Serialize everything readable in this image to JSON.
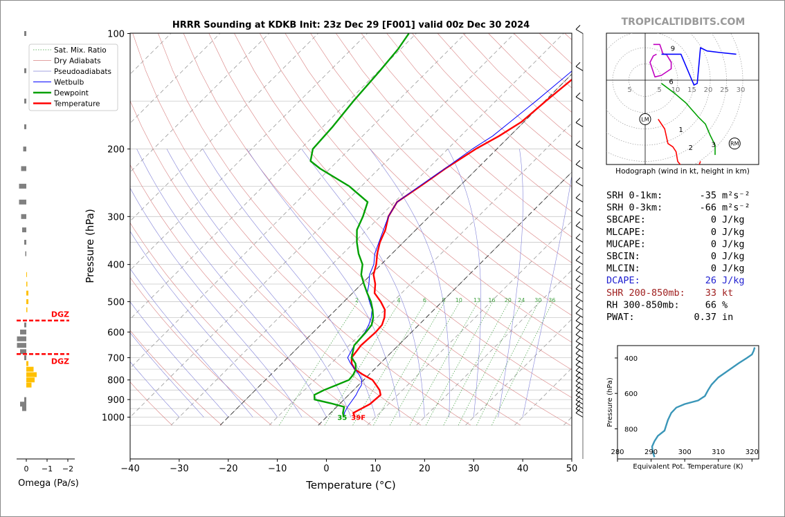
{
  "title": "HRRR Sounding at KDKB Init: 23z Dec 29 [F001] valid 00z Dec 30 2024",
  "watermark": "TROPICALTIDBITS.COM",
  "colors": {
    "temperature": "#ff0000",
    "dewpoint": "#00a000",
    "wetbulb": "#0000ff",
    "omega_up": "#808080",
    "omega_down": "#ffc000",
    "dgz": "#ff0000",
    "theta_e": "#3a96b8"
  },
  "chart_data": [
    {
      "type": "line",
      "title": "HRRR Sounding at KDKB Init: 23z Dec 29 [F001] valid 00z Dec 30 2024",
      "xlabel": "Temperature (°C)",
      "ylabel": "Pressure (hPa)",
      "xlim": [
        -40,
        50
      ],
      "ylim": [
        1050,
        100
      ],
      "y_scale": "log",
      "x_ticks": [
        -40,
        -30,
        -20,
        -10,
        0,
        10,
        20,
        30,
        40,
        50
      ],
      "y_ticks": [
        100,
        200,
        300,
        400,
        500,
        600,
        700,
        800,
        900,
        1000
      ],
      "legend": [
        "Sat. Mix. Ratio",
        "Dry Adiabats",
        "Pseudoadiabats",
        "Wetbulb",
        "Dewpoint",
        "Temperature"
      ],
      "legend_position": "top-left",
      "mixing_ratio_labels": [
        "2",
        "4",
        "6",
        "8",
        "10",
        "13",
        "16",
        "20",
        "24",
        "30",
        "36"
      ],
      "surface_labels": {
        "dewpoint": "35",
        "temperature": "39F"
      },
      "series": [
        {
          "name": "Temperature",
          "points": [
            [
              5.8,
              1000
            ],
            [
              4.6,
              975
            ],
            [
              6.2,
              925
            ],
            [
              6.5,
              875
            ],
            [
              5.3,
              850
            ],
            [
              3.6,
              825
            ],
            [
              1.8,
              800
            ],
            [
              -1.2,
              775
            ],
            [
              -4.0,
              750
            ],
            [
              -5.8,
              725
            ],
            [
              -7.0,
              700
            ],
            [
              -7.6,
              650
            ],
            [
              -7.3,
              600
            ],
            [
              -7.5,
              575
            ],
            [
              -8.5,
              550
            ],
            [
              -10.0,
              525
            ],
            [
              -12.5,
              500
            ],
            [
              -15.5,
              475
            ],
            [
              -17.2,
              450
            ],
            [
              -19.5,
              425
            ],
            [
              -21.0,
              400
            ],
            [
              -23.0,
              375
            ],
            [
              -24.8,
              350
            ],
            [
              -26.2,
              325
            ],
            [
              -28.3,
              300
            ],
            [
              -29.5,
              275
            ],
            [
              -28.0,
              250
            ],
            [
              -26.5,
              225
            ],
            [
              -24.3,
              200
            ],
            [
              -22.2,
              185
            ],
            [
              -20.5,
              170
            ],
            [
              -19.8,
              150
            ],
            [
              -18.5,
              125
            ],
            [
              -17.0,
              100
            ]
          ]
        },
        {
          "name": "Wetbulb",
          "points": [
            [
              3.5,
              1000
            ],
            [
              2.8,
              975
            ],
            [
              2.2,
              940
            ],
            [
              1.8,
              900
            ],
            [
              1.5,
              875
            ],
            [
              1.0,
              850
            ],
            [
              0.6,
              825
            ],
            [
              -0.4,
              800
            ],
            [
              -2.0,
              775
            ],
            [
              -4.0,
              750
            ],
            [
              -6.0,
              725
            ],
            [
              -7.8,
              700
            ],
            [
              -9.0,
              650
            ],
            [
              -9.5,
              600
            ],
            [
              -10.2,
              575
            ],
            [
              -11.2,
              550
            ],
            [
              -12.6,
              525
            ],
            [
              -14.8,
              500
            ],
            [
              -17.0,
              475
            ],
            [
              -18.5,
              450
            ],
            [
              -20.3,
              425
            ],
            [
              -21.5,
              400
            ],
            [
              -23.5,
              375
            ],
            [
              -25.0,
              350
            ],
            [
              -26.6,
              325
            ],
            [
              -28.3,
              300
            ],
            [
              -29.5,
              275
            ],
            [
              -28.2,
              250
            ],
            [
              -26.6,
              225
            ],
            [
              -25.0,
              200
            ],
            [
              -23.5,
              185
            ],
            [
              -22.8,
              170
            ],
            [
              -21.8,
              150
            ],
            [
              -20.6,
              125
            ],
            [
              -19.5,
              100
            ]
          ]
        },
        {
          "name": "Dewpoint",
          "points": [
            [
              3.5,
              1000
            ],
            [
              2.5,
              975
            ],
            [
              1.5,
              940
            ],
            [
              -2.0,
              920
            ],
            [
              -6.0,
              900
            ],
            [
              -7.0,
              875
            ],
            [
              -6.0,
              850
            ],
            [
              -4.5,
              825
            ],
            [
              -3.0,
              800
            ],
            [
              -3.2,
              775
            ],
            [
              -3.8,
              750
            ],
            [
              -5.0,
              725
            ],
            [
              -7.0,
              700
            ],
            [
              -9.0,
              650
            ],
            [
              -9.3,
              600
            ],
            [
              -9.6,
              575
            ],
            [
              -10.8,
              550
            ],
            [
              -12.5,
              525
            ],
            [
              -14.5,
              500
            ],
            [
              -17.0,
              475
            ],
            [
              -19.5,
              450
            ],
            [
              -22.0,
              425
            ],
            [
              -23.8,
              400
            ],
            [
              -26.8,
              375
            ],
            [
              -29.5,
              350
            ],
            [
              -32.0,
              325
            ],
            [
              -33.5,
              300
            ],
            [
              -35.5,
              275
            ],
            [
              -42.5,
              250
            ],
            [
              -52.0,
              225
            ],
            [
              -55.5,
              215
            ],
            [
              -57.5,
              200
            ],
            [
              -58.0,
              175
            ],
            [
              -59.0,
              150
            ],
            [
              -59.8,
              125
            ],
            [
              -60.5,
              110
            ],
            [
              -61.5,
              100
            ]
          ]
        }
      ]
    },
    {
      "type": "bar",
      "xlabel": "Omega (Pa/s)",
      "x_ticks": [
        "0",
        "−1",
        "−2"
      ],
      "dgz_label": "DGZ",
      "dgz_bounds_hpa": [
        560,
        685
      ],
      "omega": [
        [
          100,
          0.1
        ],
        [
          125,
          0.1
        ],
        [
          150,
          0.1
        ],
        [
          175,
          0.1
        ],
        [
          200,
          0.15
        ],
        [
          225,
          0.25
        ],
        [
          250,
          0.35
        ],
        [
          275,
          0.35
        ],
        [
          300,
          0.25
        ],
        [
          325,
          0.2
        ],
        [
          350,
          0.1
        ],
        [
          375,
          0.05
        ],
        [
          425,
          -0.02
        ],
        [
          450,
          -0.05
        ],
        [
          475,
          -0.1
        ],
        [
          500,
          -0.1
        ],
        [
          525,
          -0.05
        ],
        [
          575,
          0.1
        ],
        [
          600,
          0.3
        ],
        [
          625,
          0.45
        ],
        [
          650,
          0.45
        ],
        [
          675,
          0.3
        ],
        [
          700,
          0.1
        ],
        [
          725,
          -0.1
        ],
        [
          750,
          -0.35
        ],
        [
          775,
          -0.5
        ],
        [
          800,
          -0.4
        ],
        [
          825,
          -0.25
        ],
        [
          900,
          0.1
        ],
        [
          925,
          0.3
        ],
        [
          950,
          0.2
        ]
      ]
    },
    {
      "type": "line",
      "title": "Hodograph (wind in kt, height in km)",
      "rings": [
        5,
        10,
        15,
        20,
        25,
        30
      ],
      "labels": [
        "9",
        "6",
        "1",
        "2",
        "3"
      ],
      "markers": [
        "LM",
        "RM"
      ],
      "series": [
        {
          "color": "#ff0000",
          "points": [
            [
              4,
              -12
            ],
            [
              6,
              -15
            ],
            [
              7,
              -19.5
            ],
            [
              8.5,
              -20.5
            ],
            [
              9.5,
              -22
            ],
            [
              10,
              -25
            ],
            [
              12,
              -27.5
            ],
            [
              14,
              -28
            ],
            [
              16,
              -27.5
            ],
            [
              17,
              -25
            ]
          ]
        },
        {
          "color": "#00a000",
          "points": [
            [
              5,
              -1
            ],
            [
              9,
              -4
            ],
            [
              12.5,
              -7
            ],
            [
              16.5,
              -11.5
            ],
            [
              18.5,
              -13.5
            ],
            [
              20,
              -17
            ],
            [
              21.5,
              -20
            ],
            [
              21.5,
              -23
            ]
          ]
        },
        {
          "color": "#c000c0",
          "points": [
            [
              2.5,
              11
            ],
            [
              4.5,
              11
            ],
            [
              5,
              9.5
            ],
            [
              5.5,
              8
            ],
            [
              6.5,
              8
            ],
            [
              8,
              5.5
            ],
            [
              8,
              3.5
            ],
            [
              5,
              1.5
            ],
            [
              3,
              1
            ],
            [
              2,
              4
            ],
            [
              1.5,
              5.5
            ],
            [
              2.5,
              7.5
            ],
            [
              3.5,
              8
            ]
          ]
        },
        {
          "color": "#0000ff",
          "points": [
            [
              5,
              8
            ],
            [
              8,
              8
            ],
            [
              11,
              8
            ],
            [
              15,
              -1.5
            ],
            [
              16,
              -1
            ],
            [
              17,
              10
            ],
            [
              19,
              9
            ],
            [
              23,
              8.5
            ],
            [
              28,
              8
            ]
          ]
        }
      ]
    },
    {
      "type": "line",
      "xlabel": "Equivalent Pot. Temperature (K)",
      "ylabel": "Pressure (hPa)",
      "x_ticks": [
        "280",
        "290",
        "300",
        "310",
        "320"
      ],
      "y_ticks": [
        "400",
        "600",
        "800"
      ],
      "xlim": [
        280,
        322
      ],
      "ylim": [
        970,
        330
      ],
      "points": [
        [
          291,
          960
        ],
        [
          290.5,
          930
        ],
        [
          290.3,
          900
        ],
        [
          291,
          870
        ],
        [
          292,
          840
        ],
        [
          294,
          810
        ],
        [
          294.5,
          780
        ],
        [
          295,
          750
        ],
        [
          296,
          710
        ],
        [
          297.5,
          680
        ],
        [
          300,
          660
        ],
        [
          304,
          640
        ],
        [
          306,
          615
        ],
        [
          307,
          580
        ],
        [
          308,
          550
        ],
        [
          310,
          510
        ],
        [
          313,
          470
        ],
        [
          316,
          430
        ],
        [
          318.5,
          400
        ],
        [
          320,
          380
        ],
        [
          320.5,
          360
        ],
        [
          320.8,
          340
        ]
      ]
    }
  ],
  "indices": [
    {
      "label": "SRH 0-1km:",
      "value": "-35",
      "unit": "m²s⁻²",
      "color": "#000000"
    },
    {
      "label": "SRH 0-3km:",
      "value": "-66",
      "unit": "m²s⁻²",
      "color": "#000000"
    },
    {
      "label": "SBCAPE:",
      "value": "0",
      "unit": "J/kg",
      "color": "#000000"
    },
    {
      "label": "MLCAPE:",
      "value": "0",
      "unit": "J/kg",
      "color": "#000000"
    },
    {
      "label": "MUCAPE:",
      "value": "0",
      "unit": "J/kg",
      "color": "#000000"
    },
    {
      "label": "SBCIN:",
      "value": "0",
      "unit": "J/kg",
      "color": "#000000"
    },
    {
      "label": "MLCIN:",
      "value": "0",
      "unit": "J/kg",
      "color": "#000000"
    },
    {
      "label": "DCAPE:",
      "value": "26",
      "unit": "J/kg",
      "color": "#2020d0"
    },
    {
      "label": "SHR 200-850mb:",
      "value": "33",
      "unit": "kt",
      "color": "#a02020"
    },
    {
      "label": "RH 300-850mb:",
      "value": "66",
      "unit": "%",
      "color": "#000000"
    },
    {
      "label": "PWAT:",
      "value": "0.37",
      "unit": "in",
      "color": "#000000"
    }
  ]
}
